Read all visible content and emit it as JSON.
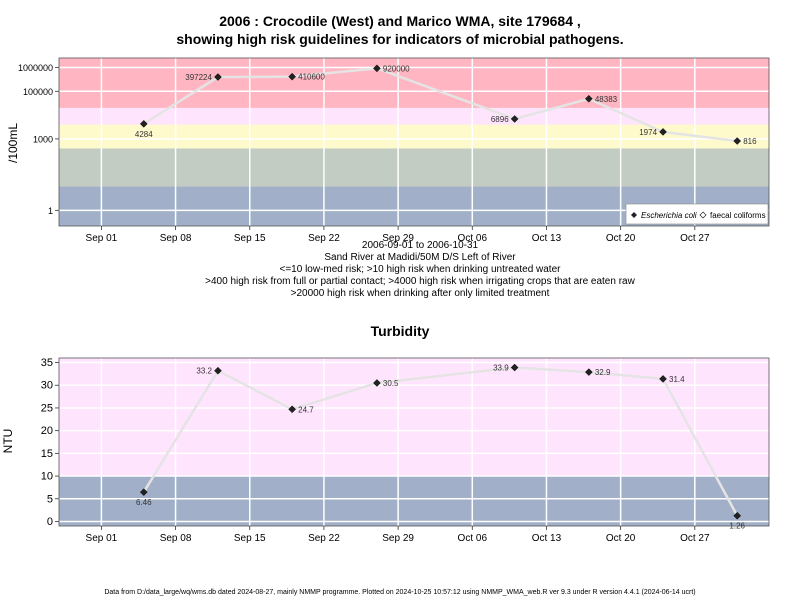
{
  "chart_data": [
    {
      "type": "line",
      "title_lines": [
        "2006 : Crocodile (West) and Marico WMA, site 179684 ,",
        "showing high risk guidelines for indicators of microbial pathogens."
      ],
      "ylabel": "/100mL",
      "yscale": "log",
      "ylim": [
        0.22,
        2500000
      ],
      "xlim": [
        "2006-08-28",
        "2006-11-03"
      ],
      "x_ticks": [
        "2006-09-01",
        "2006-09-08",
        "2006-09-15",
        "2006-09-22",
        "2006-09-29",
        "2006-10-06",
        "2006-10-13",
        "2006-10-20",
        "2006-10-27"
      ],
      "x_tick_labels": [
        "Sep 01",
        "Sep 08",
        "Sep 15",
        "Sep 22",
        "Sep 29",
        "Oct 06",
        "Oct 13",
        "Oct 20",
        "Oct 27"
      ],
      "y_ticks": [
        1,
        1000,
        100000,
        1000000
      ],
      "y_tick_labels": [
        "1",
        "1000",
        "100000",
        "1000000"
      ],
      "bands": [
        {
          "from": 0.22,
          "to": 10,
          "color": "#a1b0c8"
        },
        {
          "from": 10,
          "to": 400,
          "color": "#c2ccc2"
        },
        {
          "from": 400,
          "to": 4000,
          "color": "#fffacc"
        },
        {
          "from": 4000,
          "to": 20000,
          "color": "#ffe4fd"
        },
        {
          "from": 20000,
          "to": 2500000,
          "color": "#ffb6c2"
        }
      ],
      "series": [
        {
          "name": "Escherichia coli",
          "marker": "filled-diamond",
          "points": [
            {
              "x": "2006-09-05",
              "y": 4284,
              "label": "4284",
              "label_pos": "below"
            },
            {
              "x": "2006-09-12",
              "y": 397224,
              "label": "397224",
              "label_pos": "left"
            },
            {
              "x": "2006-09-19",
              "y": 410600,
              "label": "410600",
              "label_pos": "right"
            },
            {
              "x": "2006-09-27",
              "y": 920000,
              "label": "920000",
              "label_pos": "right"
            },
            {
              "x": "2006-10-10",
              "y": 6896,
              "label": "6896",
              "label_pos": "left"
            },
            {
              "x": "2006-10-17",
              "y": 48383,
              "label": "48383",
              "label_pos": "right"
            },
            {
              "x": "2006-10-24",
              "y": 1974,
              "label": "1974",
              "label_pos": "left"
            },
            {
              "x": "2006-10-31",
              "y": 816,
              "label": "816",
              "label_pos": "right"
            }
          ]
        },
        {
          "name": "faecal coliforms",
          "marker": "open-diamond",
          "points": []
        }
      ],
      "legend": [
        "Escherichia coli",
        "faecal coliforms"
      ],
      "legend_placement": "bottom-right",
      "grid": true,
      "subtitle_lines": [
        "2006-09-01 to 2006-10-31",
        "Sand River at Madidi/50M D/S Left of River",
        "<=10 low-med risk; >10 high risk when drinking untreated water",
        ">400 high risk from full or partial contact; >4000 high risk when irrigating crops that are eaten raw",
        ">20000 high risk when drinking after only limited treatment"
      ]
    },
    {
      "type": "line",
      "title": "Turbidity",
      "ylabel": "NTU",
      "yscale": "linear",
      "ylim": [
        -1,
        36
      ],
      "xlim": [
        "2006-08-28",
        "2006-11-03"
      ],
      "x_ticks": [
        "2006-09-01",
        "2006-09-08",
        "2006-09-15",
        "2006-09-22",
        "2006-09-29",
        "2006-10-06",
        "2006-10-13",
        "2006-10-20",
        "2006-10-27"
      ],
      "x_tick_labels": [
        "Sep 01",
        "Sep 08",
        "Sep 15",
        "Sep 22",
        "Sep 29",
        "Oct 06",
        "Oct 13",
        "Oct 20",
        "Oct 27"
      ],
      "y_ticks": [
        0,
        5,
        10,
        15,
        20,
        25,
        30,
        35
      ],
      "y_tick_labels": [
        "0",
        "5",
        "10",
        "15",
        "20",
        "25",
        "30",
        "35"
      ],
      "bands": [
        {
          "from": -1,
          "to": 10,
          "color": "#a1b0c8"
        },
        {
          "from": 10,
          "to": 36,
          "color": "#ffe4fd"
        }
      ],
      "series": [
        {
          "marker": "filled-diamond",
          "points": [
            {
              "x": "2006-09-05",
              "y": 6.46,
              "label": "6.46",
              "label_pos": "below"
            },
            {
              "x": "2006-09-12",
              "y": 33.2,
              "label": "33.2",
              "label_pos": "left"
            },
            {
              "x": "2006-09-19",
              "y": 24.7,
              "label": "24.7",
              "label_pos": "right"
            },
            {
              "x": "2006-09-27",
              "y": 30.5,
              "label": "30.5",
              "label_pos": "right"
            },
            {
              "x": "2006-10-10",
              "y": 33.9,
              "label": "33.9",
              "label_pos": "left"
            },
            {
              "x": "2006-10-17",
              "y": 32.9,
              "label": "32.9",
              "label_pos": "right"
            },
            {
              "x": "2006-10-24",
              "y": 31.4,
              "label": "31.4",
              "label_pos": "right"
            },
            {
              "x": "2006-10-31",
              "y": 1.26,
              "label": "1.26",
              "label_pos": "below"
            }
          ]
        }
      ],
      "grid": true
    }
  ],
  "footer": "Data from D:/data_large/wq/wms.db dated 2024-08-27, mainly NMMP programme. Plotted on 2024-10-25 10:57:12 using NMMP_WMA_web.R ver 9.3 under R version 4.4.1 (2024-06-14 ucrt)"
}
